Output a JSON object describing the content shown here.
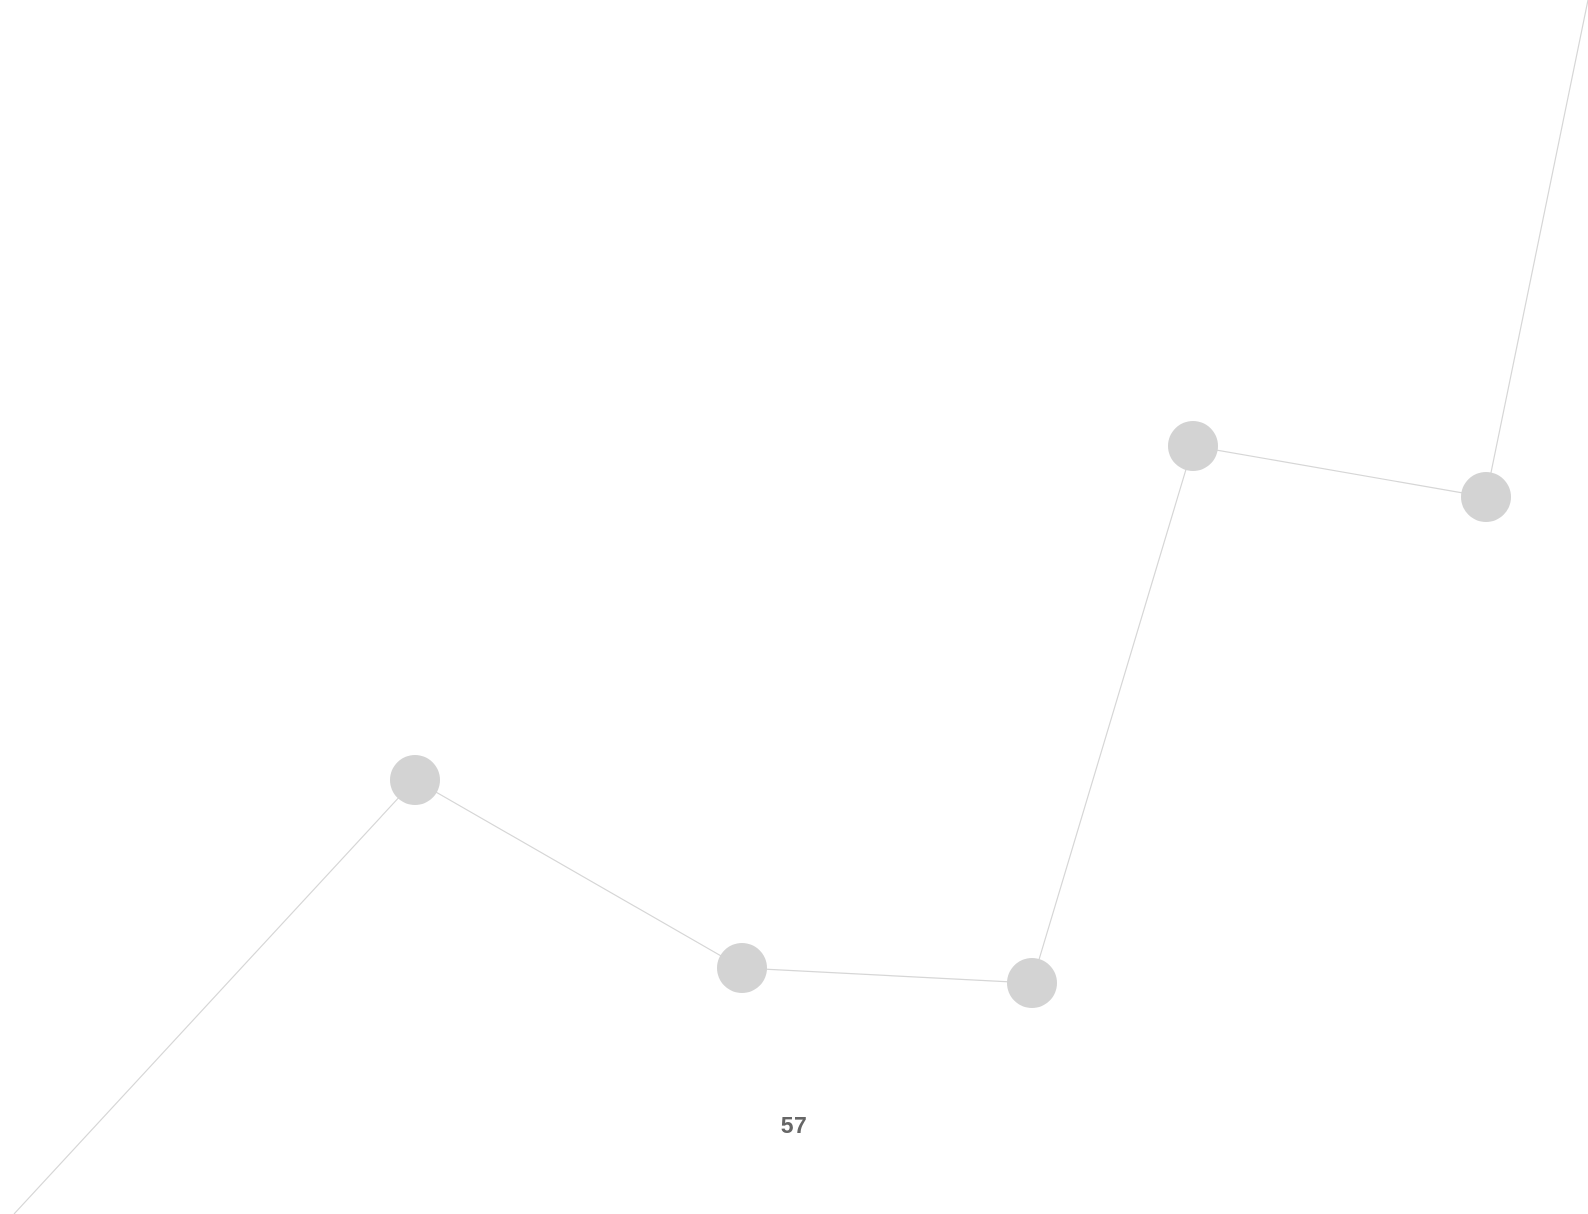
{
  "page": {
    "page_number": "57"
  },
  "colors": {
    "background": "#ffffff",
    "decoration_line": "#d6d6d6",
    "decoration_node": "#d3d3d3",
    "page_number_text": "#666666"
  }
}
